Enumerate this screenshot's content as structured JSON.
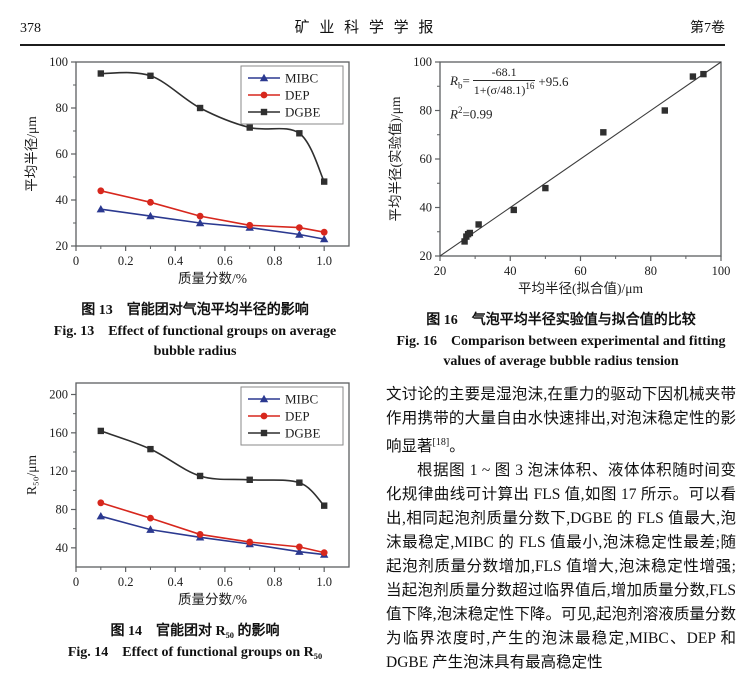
{
  "header": {
    "page_number": "378",
    "journal_title": "矿 业 科 学 学 报",
    "volume": "第7卷"
  },
  "figures": {
    "fig13": {
      "caption_zh": "图 13　官能团对气泡平均半径的影响",
      "caption_en": "Fig. 13　Effect of functional groups on average bubble radius"
    },
    "fig14": {
      "caption_zh": "图 14　官能团对 R₅₀ 的影响",
      "caption_en": "Fig. 14　Effect of functional groups on R₅₀"
    },
    "fig16": {
      "caption_zh": "图 16　气泡平均半径实验值与拟合值的比较",
      "caption_en": "Fig. 16　Comparison between experimental and fitting values of average bubble radius tension"
    }
  },
  "body_text": {
    "p1": "文讨论的主要是湿泡沫,在重力的驱动下因机械夹带作用携带的大量自由水快速排出,对泡沫稳定性的影响显著",
    "p1_ref": "[18]",
    "p1_end": "。",
    "p2": "根据图 1 ~ 图 3 泡沫体积、液体体积随时间变化规律曲线可计算出 FLS 值,如图 17 所示。可以看出,相同起泡剂质量分数下,DGBE 的 FLS 值最大,泡沫最稳定,MIBC 的 FLS 值最小,泡沫稳定性最差;随起泡剂质量分数增加,FLS 值增大,泡沫稳定性增强;当起泡剂质量分数超过临界值后,增加质量分数,FLS 值下降,泡沫稳定性下降。可见,起泡剂溶液质量分数为临界浓度时,产生的泡沫最稳定,MIBC、DEP 和 DGBE 产生泡沫具有最高稳定性"
  },
  "chart_data": [
    {
      "id": "fig13",
      "type": "line",
      "title": "",
      "xlabel": "质量分数/%",
      "ylabel": "平均半径/μm",
      "xlim": [
        0,
        1.1
      ],
      "ylim": [
        20,
        100
      ],
      "xticks": [
        "0",
        "0.2",
        "0.4",
        "0.6",
        "0.8",
        "1.0"
      ],
      "yticks": [
        "20",
        "40",
        "60",
        "80",
        "100"
      ],
      "x_minor_step": 0.1,
      "y_minor_step": 10,
      "grid": false,
      "legend_position": "top-right",
      "x": [
        0.1,
        0.3,
        0.5,
        0.7,
        0.9,
        1.0
      ],
      "series": [
        {
          "name": "MIBC",
          "color": "#2b3990",
          "marker": "triangle",
          "smooth": false,
          "values": [
            36,
            33,
            30,
            28,
            25,
            23
          ]
        },
        {
          "name": "DEP",
          "color": "#d7271d",
          "marker": "circle",
          "smooth": false,
          "values": [
            44,
            39,
            33,
            29,
            28,
            26
          ]
        },
        {
          "name": "DGBE",
          "color": "#2f2f2f",
          "marker": "square",
          "smooth": true,
          "values": [
            95,
            94,
            80,
            71.5,
            69,
            48
          ]
        }
      ]
    },
    {
      "id": "fig16",
      "type": "scatter",
      "title": "",
      "xlabel": "平均半径(拟合值)/μm",
      "ylabel": "平均半径(实验值)/μm",
      "xlim": [
        20,
        100
      ],
      "ylim": [
        20,
        100
      ],
      "xticks": [
        "20",
        "40",
        "60",
        "80",
        "100"
      ],
      "yticks": [
        "20",
        "40",
        "60",
        "80",
        "100"
      ],
      "x_minor_step": 10,
      "y_minor_step": 10,
      "grid": false,
      "marker": "square",
      "marker_color": "#2f2f2f",
      "points": [
        [
          27,
          26
        ],
        [
          27.5,
          28
        ],
        [
          28,
          29
        ],
        [
          28.5,
          29.5
        ],
        [
          31,
          33
        ],
        [
          41,
          39
        ],
        [
          50,
          48
        ],
        [
          66.5,
          71
        ],
        [
          84,
          80
        ],
        [
          92,
          94
        ],
        [
          95,
          95
        ]
      ],
      "fit_line": {
        "x1": 20,
        "y1": 20,
        "x2": 100,
        "y2": 100
      },
      "annotation": {
        "lhs": "R",
        "lhs_sub": "b",
        "equals": "=",
        "numerator": "-68.1",
        "denominator": "1+(σ/48.1)",
        "denominator_exp": "16",
        "tail": "+95.6",
        "r2_base": "R",
        "r2_sup": "2",
        "r2_tail": "=0.99"
      }
    },
    {
      "id": "fig14",
      "type": "line",
      "title": "",
      "xlabel": "质量分数/%",
      "ylabel": "R₅₀/μm",
      "xlim": [
        0,
        1.1
      ],
      "ylim": [
        20,
        212
      ],
      "xticks": [
        "0",
        "0.2",
        "0.4",
        "0.6",
        "0.8",
        "1.0"
      ],
      "yticks": [
        "40",
        "80",
        "120",
        "160",
        "200"
      ],
      "x_minor_step": 0.1,
      "y_minor_step": 20,
      "grid": false,
      "legend_position": "top-right",
      "x": [
        0.1,
        0.3,
        0.5,
        0.7,
        0.9,
        1.0
      ],
      "series": [
        {
          "name": "MIBC",
          "color": "#2b3990",
          "marker": "triangle",
          "smooth": false,
          "values": [
            73,
            59,
            51,
            44,
            36,
            33
          ]
        },
        {
          "name": "DEP",
          "color": "#d7271d",
          "marker": "circle",
          "smooth": false,
          "values": [
            87,
            71,
            54,
            46,
            41,
            35
          ]
        },
        {
          "name": "DGBE",
          "color": "#2f2f2f",
          "marker": "square",
          "smooth": true,
          "values": [
            162,
            143,
            115,
            111,
            108,
            84
          ]
        }
      ]
    }
  ]
}
